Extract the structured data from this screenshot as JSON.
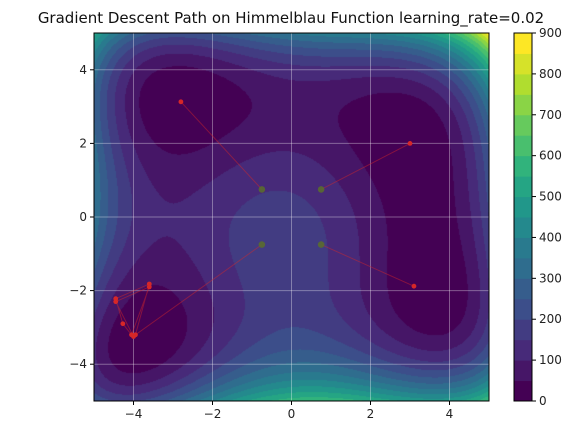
{
  "chart_data": {
    "type": "contour",
    "title": "Gradient Descent Path on Himmelblau Function learning_rate=0.02",
    "xlabel": "",
    "ylabel": "",
    "xlim": [
      -5,
      5
    ],
    "ylim": [
      -5,
      5
    ],
    "x_ticks": [
      "−4",
      "−2",
      "0",
      "2",
      "4"
    ],
    "y_ticks": [
      "−4",
      "−2",
      "0",
      "2",
      "4"
    ],
    "x_tick_values": [
      -4,
      -2,
      0,
      2,
      4
    ],
    "y_tick_values": [
      -4,
      -2,
      0,
      2,
      4
    ],
    "grid": true,
    "colormap": "viridis",
    "colorbar": {
      "range": [
        0,
        900
      ],
      "levels": [
        0,
        50,
        100,
        150,
        200,
        250,
        300,
        350,
        400,
        450,
        500,
        550,
        600,
        650,
        700,
        750,
        800,
        850,
        900
      ],
      "ticks": [
        "0",
        "100",
        "200",
        "300",
        "400",
        "500",
        "600",
        "700",
        "800",
        "900"
      ],
      "tick_values": [
        0,
        100,
        200,
        300,
        400,
        500,
        600,
        700,
        800,
        900
      ]
    },
    "start_points": [
      {
        "x": -0.75,
        "y": 0.75
      },
      {
        "x": 0.75,
        "y": 0.75
      },
      {
        "x": -0.75,
        "y": -0.75
      },
      {
        "x": 0.75,
        "y": -0.75
      }
    ],
    "paths": [
      {
        "points": [
          [
            -0.75,
            0.75
          ],
          [
            -2.8,
            3.13
          ]
        ]
      },
      {
        "points": [
          [
            0.75,
            0.75
          ],
          [
            3.0,
            2.0
          ]
        ]
      },
      {
        "points": [
          [
            0.75,
            -0.75
          ],
          [
            3.1,
            -1.88
          ]
        ]
      },
      {
        "points": [
          [
            -0.75,
            -0.75
          ],
          [
            -3.95,
            -3.2
          ],
          [
            -3.6,
            -1.82
          ],
          [
            -4.45,
            -2.22
          ],
          [
            -4.27,
            -2.9
          ],
          [
            -4.05,
            -3.2
          ],
          [
            -3.6,
            -1.9
          ],
          [
            -4.45,
            -2.3
          ],
          [
            -4.0,
            -3.25
          ]
        ]
      }
    ],
    "colors": {
      "path": "#d62728",
      "start_point": "#5a6e2a",
      "grid": "#ffffff"
    }
  }
}
